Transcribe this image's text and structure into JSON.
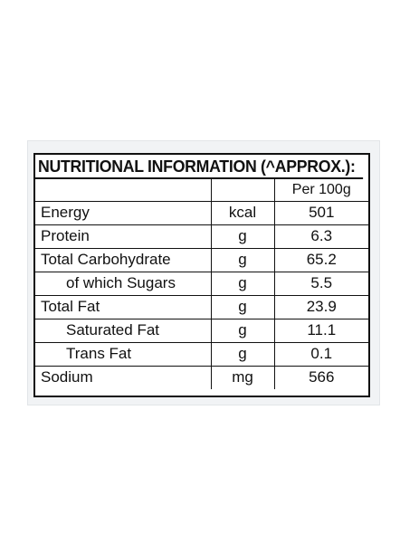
{
  "label": {
    "title": "NUTRITIONAL INFORMATION (^APPROX.):",
    "columns": {
      "nutrient": "",
      "unit": "",
      "per": "Per 100g"
    },
    "rows": [
      {
        "nutrient": "Energy",
        "unit": "kcal",
        "value": "501",
        "indent": false
      },
      {
        "nutrient": "Protein",
        "unit": "g",
        "value": "6.3",
        "indent": false
      },
      {
        "nutrient": "Total Carbohydrate",
        "unit": "g",
        "value": "65.2",
        "indent": false
      },
      {
        "nutrient": "of which Sugars",
        "unit": "g",
        "value": "5.5",
        "indent": true
      },
      {
        "nutrient": "Total Fat",
        "unit": "g",
        "value": "23.9",
        "indent": false
      },
      {
        "nutrient": "Saturated Fat",
        "unit": "g",
        "value": "11.1",
        "indent": true
      },
      {
        "nutrient": "Trans Fat",
        "unit": "g",
        "value": "0.1",
        "indent": true
      },
      {
        "nutrient": "Sodium",
        "unit": "mg",
        "value": "566",
        "indent": false
      }
    ]
  }
}
